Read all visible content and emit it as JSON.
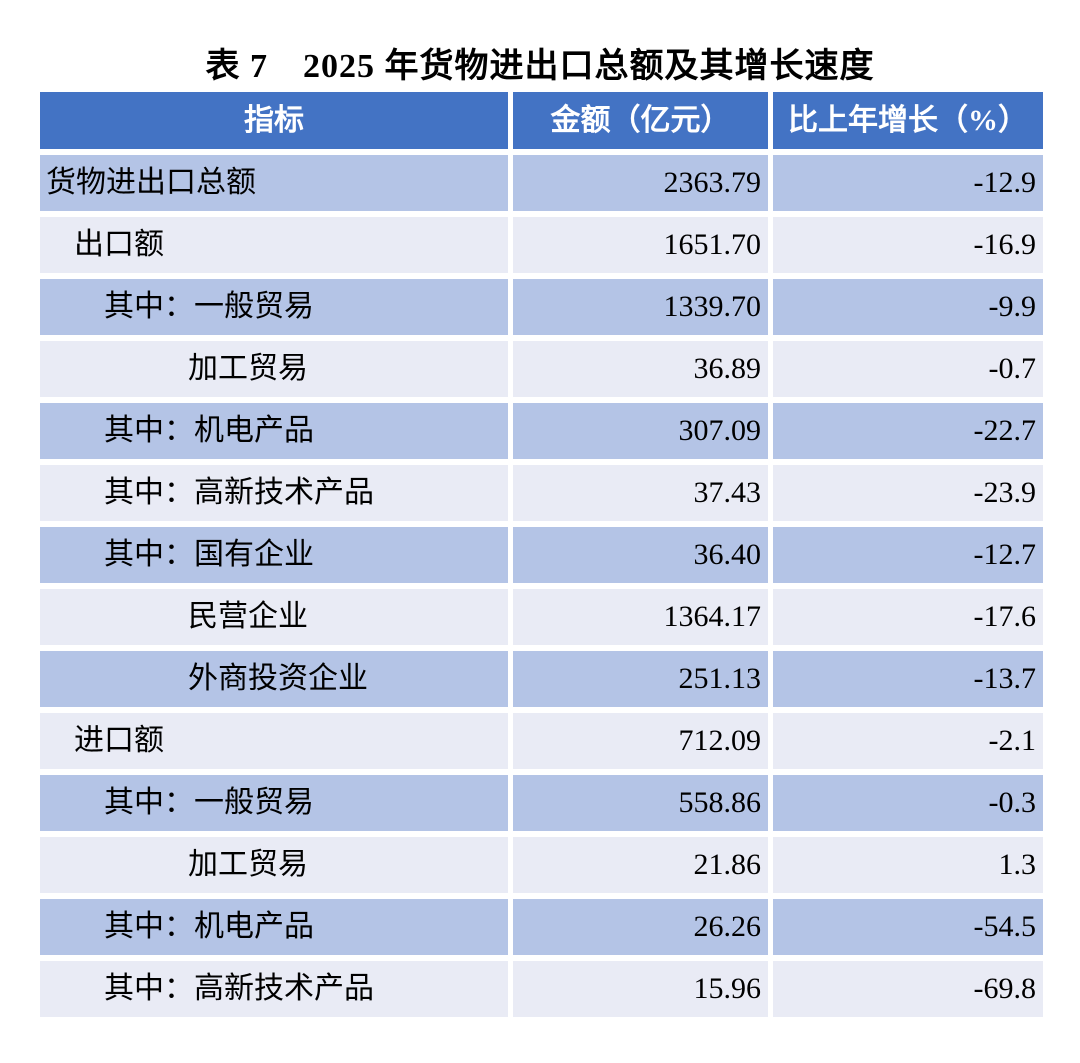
{
  "title": "表 7　2025 年货物进出口总额及其增长速度",
  "table": {
    "headers": [
      "指标",
      "金额（亿元）",
      "比上年增长（%）"
    ],
    "colors": {
      "header_bg": "#4373C4",
      "header_text": "#FFFFFF",
      "band_dark": "#B4C4E6",
      "band_light": "#E9EBF5",
      "body_text": "#000000",
      "gutter": "#FFFFFF"
    },
    "rows": [
      {
        "indicator": "货物进出口总额",
        "amount": "2363.79",
        "growth": "-12.9"
      },
      {
        "indicator": "出口额",
        "amount": "1651.70",
        "growth": "-16.9"
      },
      {
        "indicator": "其中：一般贸易",
        "amount": "1339.70",
        "growth": "-9.9"
      },
      {
        "indicator": "加工贸易",
        "amount": "36.89",
        "growth": "-0.7"
      },
      {
        "indicator": "其中：机电产品",
        "amount": "307.09",
        "growth": "-22.7"
      },
      {
        "indicator": "其中：高新技术产品",
        "amount": "37.43",
        "growth": "-23.9"
      },
      {
        "indicator": "其中：国有企业",
        "amount": "36.40",
        "growth": "-12.7"
      },
      {
        "indicator": "民营企业",
        "amount": "1364.17",
        "growth": "-17.6"
      },
      {
        "indicator": "外商投资企业",
        "amount": "251.13",
        "growth": "-13.7"
      },
      {
        "indicator": "进口额",
        "amount": "712.09",
        "growth": "-2.1"
      },
      {
        "indicator": "其中：一般贸易",
        "amount": "558.86",
        "growth": "-0.3"
      },
      {
        "indicator": "加工贸易",
        "amount": "21.86",
        "growth": "1.3"
      },
      {
        "indicator": "其中：机电产品",
        "amount": "26.26",
        "growth": "-54.5"
      },
      {
        "indicator": "其中：高新技术产品",
        "amount": "15.96",
        "growth": "-69.8"
      }
    ]
  }
}
